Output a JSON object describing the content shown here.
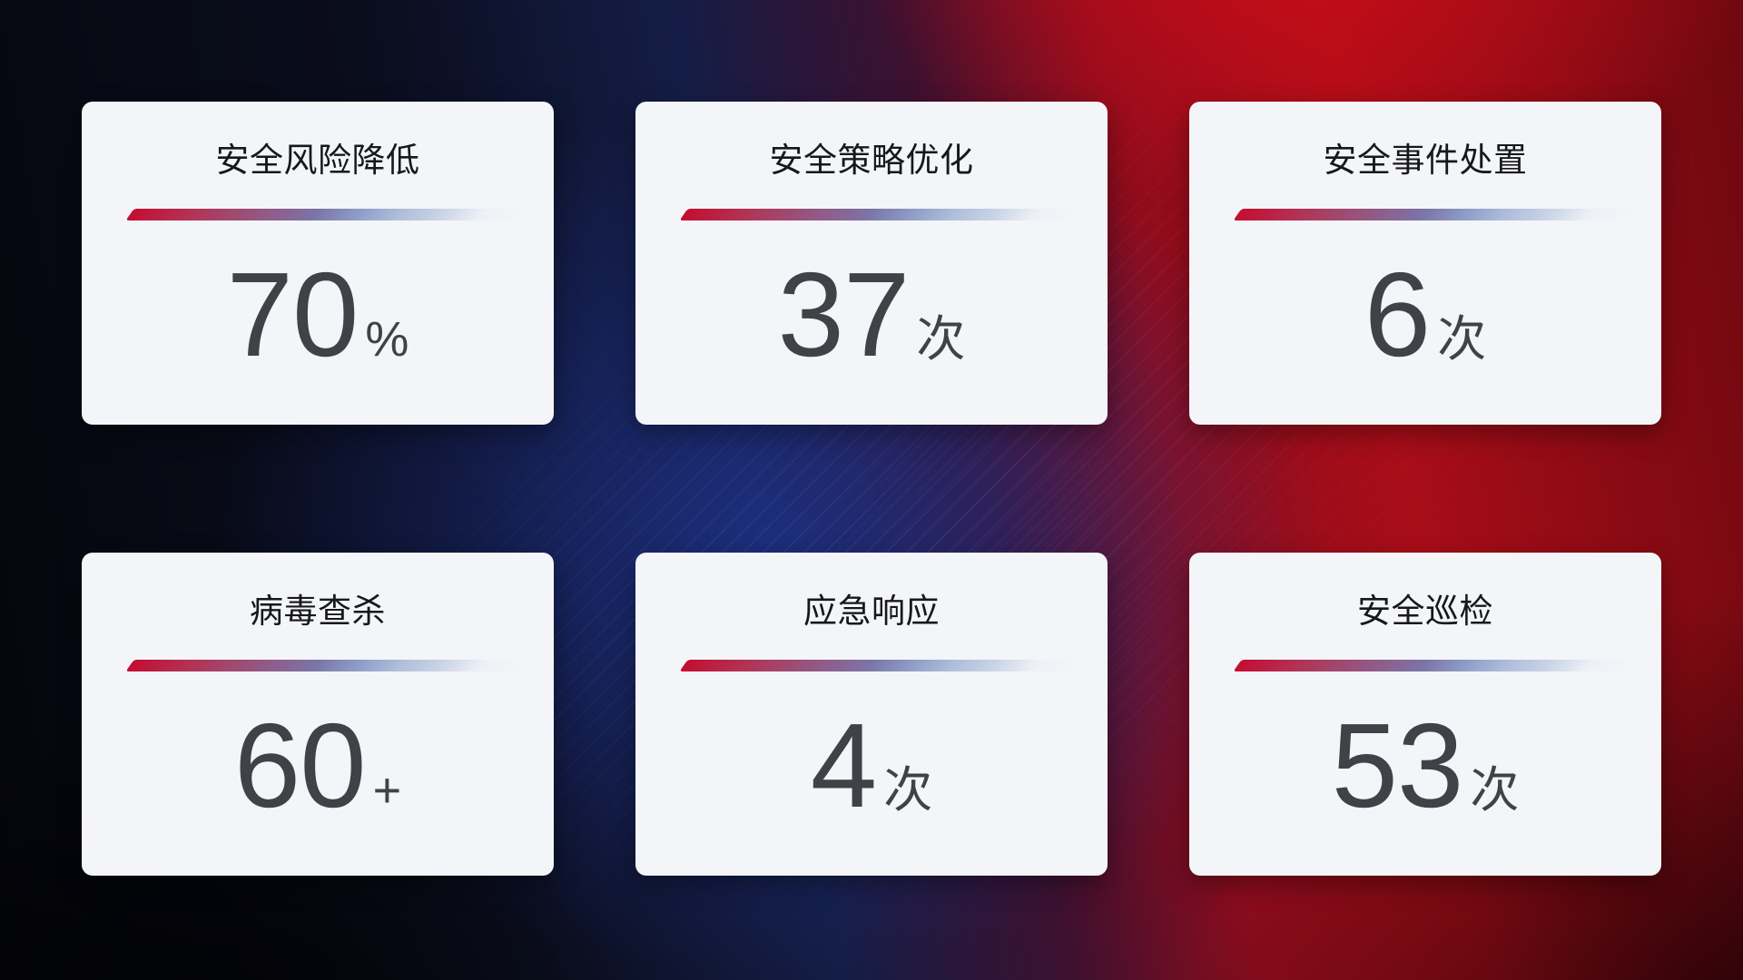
{
  "cards": [
    {
      "title": "安全风险降低",
      "value": "70",
      "unit": "%"
    },
    {
      "title": "安全策略优化",
      "value": "37",
      "unit": "次"
    },
    {
      "title": "安全事件处置",
      "value": "6",
      "unit": "次"
    },
    {
      "title": "病毒查杀",
      "value": "60",
      "unit": "+"
    },
    {
      "title": "应急响应",
      "value": "4",
      "unit": "次"
    },
    {
      "title": "安全巡检",
      "value": "53",
      "unit": "次"
    }
  ],
  "chart_data": {
    "type": "table",
    "title": "",
    "categories": [
      "安全风险降低",
      "安全策略优化",
      "安全事件处置",
      "病毒查杀",
      "应急响应",
      "安全巡检"
    ],
    "values": [
      70,
      37,
      6,
      60,
      4,
      53
    ],
    "units": [
      "%",
      "次",
      "次",
      "+",
      "次",
      "次"
    ],
    "layout": "3x2 KPI stat cards on dark red/blue gradient background"
  },
  "colors": {
    "accent_red": "#c30e31",
    "accent_blue": "#8d9cc6",
    "card_background": "#f4f5f8",
    "title_color": "#17181c",
    "number_color": "#404248",
    "background_dark_navy": "#0a0d1d",
    "background_blue": "#1e3084",
    "background_bright_red": "#a80d18"
  }
}
